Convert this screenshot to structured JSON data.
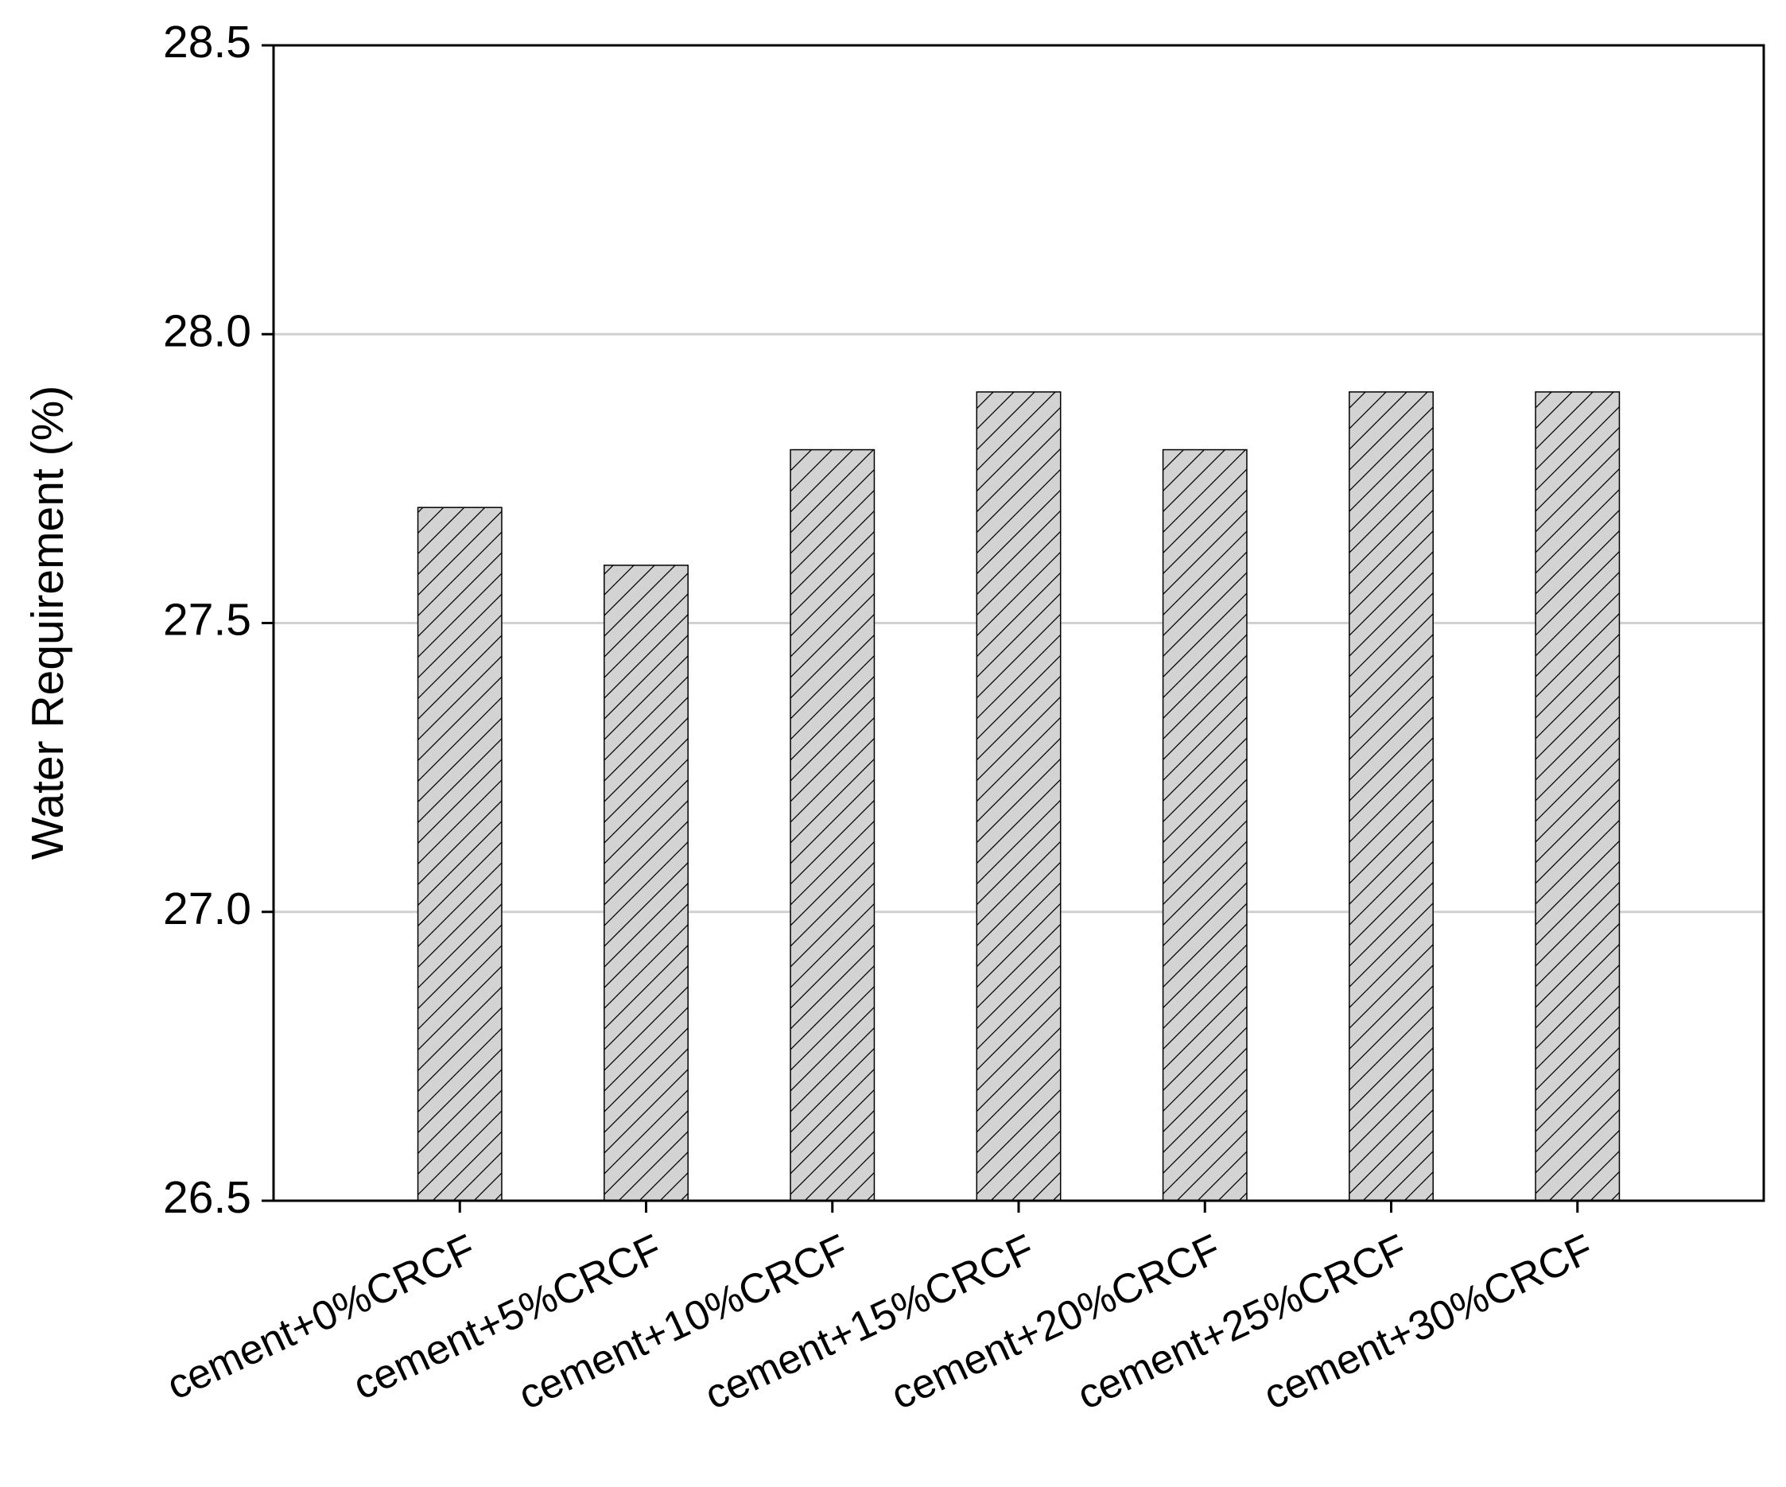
{
  "chart_data": {
    "type": "bar",
    "y_label": "Water Requirement (%)",
    "categories": [
      "cement+0%CRCF",
      "cement+5%CRCF",
      "cement+10%CRCF",
      "cement+15%CRCF",
      "cement+20%CRCF",
      "cement+25%CRCF",
      "cement+30%CRCF"
    ],
    "values": [
      27.7,
      27.6,
      27.8,
      27.9,
      27.8,
      27.9,
      27.9
    ],
    "color": "#d3d3d3",
    "ylim": [
      26.5,
      28.5
    ],
    "yticks": [
      26.5,
      {
        "value": 27,
        "label": "27.0"
      },
      27.5,
      {
        "value": 28,
        "label": "28.0"
      },
      28.5
    ],
    "grid": true
  }
}
